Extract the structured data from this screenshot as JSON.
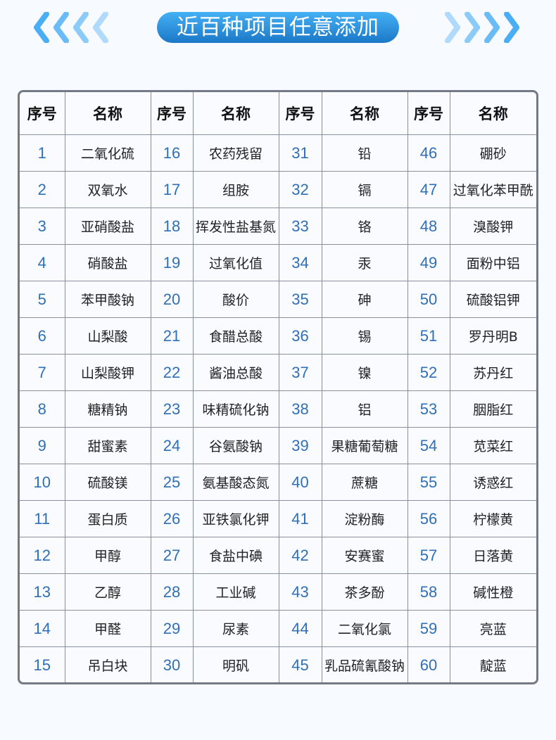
{
  "banner": {
    "title": "近百种项目任意添加",
    "color": "#2a8ee0"
  },
  "table": {
    "headers": [
      "序号",
      "名称",
      "序号",
      "名称",
      "序号",
      "名称",
      "序号",
      "名称"
    ],
    "columns": [
      [
        "二氧化硫",
        "双氧水",
        "亚硝酸盐",
        "硝酸盐",
        "苯甲酸钠",
        "山梨酸",
        "山梨酸钾",
        "糖精钠",
        "甜蜜素",
        "硫酸镁",
        "蛋白质",
        "甲醇",
        "乙醇",
        "甲醛",
        "吊白块"
      ],
      [
        "农药残留",
        "组胺",
        "挥发性盐基氮",
        "过氧化值",
        "酸价",
        "食醋总酸",
        "酱油总酸",
        "味精硫化钠",
        "谷氨酸钠",
        "氨基酸态氮",
        "亚铁氯化钾",
        "食盐中碘",
        "工业碱",
        "尿素",
        "明矾"
      ],
      [
        "铅",
        "镉",
        "铬",
        "汞",
        "砷",
        "锡",
        "镍",
        "铝",
        "果糖葡萄糖",
        "蔗糖",
        "淀粉酶",
        "安赛蜜",
        "茶多酚",
        "二氧化氯",
        "乳品硫氰酸钠"
      ],
      [
        "硼砂",
        "过氧化苯甲酰",
        "溴酸钾",
        "面粉中铝",
        "硫酸铝钾",
        "罗丹明B",
        "苏丹红",
        "胭脂红",
        "苋菜红",
        "诱惑红",
        "柠檬黄",
        "日落黄",
        "碱性橙",
        "亮蓝",
        "靛蓝"
      ]
    ],
    "number_color": "#2f6fb8"
  }
}
